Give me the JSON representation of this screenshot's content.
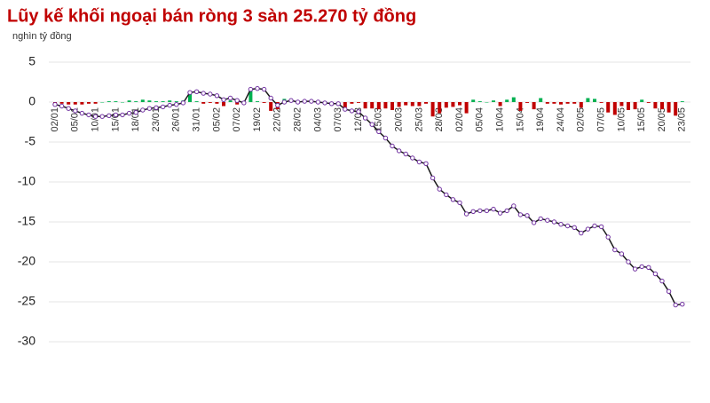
{
  "chart_data": {
    "type": "combo",
    "title": "Lũy kế khối ngoại bán ròng 3 sàn 25.270 tỷ đồng",
    "subtitle": "nghìn tỷ đồng",
    "categories": [
      "02/01",
      null,
      null,
      "05/01",
      null,
      null,
      "10/01",
      null,
      null,
      "15/01",
      null,
      null,
      "18/01",
      null,
      null,
      "23/01",
      null,
      null,
      "26/01",
      null,
      null,
      "31/01",
      null,
      null,
      "05/02",
      null,
      null,
      "07/02",
      null,
      null,
      "19/02",
      null,
      null,
      "22/02",
      null,
      null,
      "28/02",
      null,
      null,
      "04/03",
      null,
      null,
      "07/03",
      null,
      null,
      "12/03",
      null,
      null,
      "15/03",
      null,
      null,
      "20/03",
      null,
      null,
      "25/03",
      null,
      null,
      "28/03",
      null,
      null,
      "02/04",
      null,
      null,
      "05/04",
      null,
      null,
      "10/04",
      null,
      null,
      "15/04",
      null,
      null,
      "19/04",
      null,
      null,
      "24/04",
      null,
      null,
      "02/05",
      null,
      null,
      "07/05",
      null,
      null,
      "10/05",
      null,
      null,
      "15/05",
      null,
      null,
      "20/05",
      null,
      null,
      "23/05"
    ],
    "series": [
      {
        "type": "bar",
        "positive_color": "#00b050",
        "negative_color": "#c00000",
        "values": [
          -0.3,
          -0.2,
          -0.3,
          -0.3,
          -0.3,
          -0.2,
          -0.2,
          0,
          0.1,
          0.1,
          0,
          0.2,
          0.1,
          0.3,
          0.2,
          0.1,
          0.1,
          0.2,
          0.1,
          0.2,
          1.3,
          0.1,
          -0.2,
          -0.1,
          -0.2,
          -0.5,
          0.2,
          -0.3,
          -0.3,
          1.7,
          0.1,
          -0.1,
          -1.1,
          -0.9,
          0.4,
          0.2,
          -0.2,
          0.1,
          0,
          -0.1,
          -0.1,
          -0.1,
          0,
          -0.7,
          -0.2,
          -0.1,
          -0.8,
          -0.8,
          -0.9,
          -0.8,
          -1.0,
          -0.6,
          -0.4,
          -0.5,
          -0.5,
          -0.2,
          -1.8,
          -1.4,
          -0.7,
          -0.6,
          -0.4,
          -1.4,
          0.3,
          0.1,
          0,
          0.2,
          -0.5,
          0.3,
          0.6,
          -1.1,
          -0.1,
          -0.9,
          0.5,
          -0.2,
          -0.2,
          -0.3,
          -0.2,
          -0.2,
          -0.7,
          0.5,
          0.4,
          -0.1,
          -1.3,
          -1.6,
          -0.5,
          -1.0,
          -0.9,
          0.3,
          -0.1,
          -0.8,
          -0.9,
          -1.3,
          -1.7,
          0.1
        ]
      },
      {
        "type": "line",
        "color": "#1a1a1a",
        "marker_color": "#7030a0",
        "values": [
          -0.3,
          -0.5,
          -0.8,
          -1.1,
          -1.4,
          -1.6,
          -1.8,
          -1.8,
          -1.7,
          -1.6,
          -1.6,
          -1.4,
          -1.3,
          -1.0,
          -0.8,
          -0.7,
          -0.6,
          -0.4,
          -0.3,
          -0.1,
          1.2,
          1.3,
          1.1,
          1.0,
          0.8,
          0.3,
          0.5,
          0.2,
          -0.1,
          1.6,
          1.7,
          1.6,
          0.5,
          -0.4,
          0.0,
          0.2,
          0.0,
          0.1,
          0.1,
          0.0,
          -0.1,
          -0.2,
          -0.2,
          -0.9,
          -1.1,
          -1.2,
          -2.0,
          -2.8,
          -3.7,
          -4.5,
          -5.5,
          -6.1,
          -6.5,
          -7.0,
          -7.5,
          -7.7,
          -9.5,
          -10.9,
          -11.6,
          -12.2,
          -12.6,
          -14.0,
          -13.7,
          -13.6,
          -13.6,
          -13.4,
          -13.9,
          -13.6,
          -13.0,
          -14.1,
          -14.2,
          -15.1,
          -14.6,
          -14.8,
          -15.0,
          -15.3,
          -15.5,
          -15.7,
          -16.4,
          -15.9,
          -15.5,
          -15.6,
          -16.9,
          -18.5,
          -19.0,
          -20.0,
          -20.9,
          -20.6,
          -20.7,
          -21.5,
          -22.4,
          -23.7,
          -25.4,
          -25.3
        ]
      }
    ],
    "ylim": [
      -30,
      5
    ],
    "yticks": [
      5,
      0,
      -5,
      -10,
      -15,
      -20,
      -25,
      -30
    ],
    "grid": true
  }
}
